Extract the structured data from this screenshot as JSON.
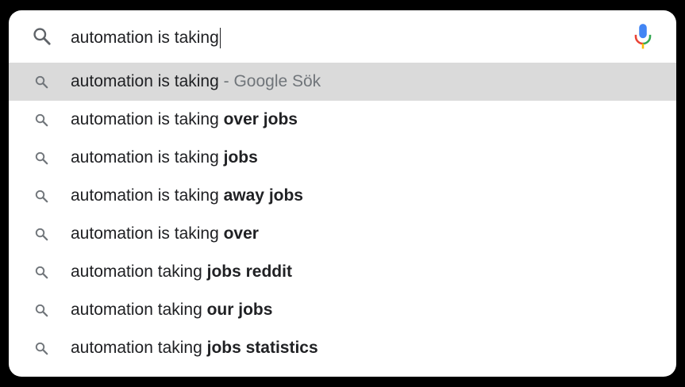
{
  "search": {
    "query": "automation is taking",
    "icon": "search-icon",
    "mic_icon": "microphone-icon"
  },
  "suggestions": [
    {
      "base": "automation is taking",
      "bold": "",
      "suffix": " - Google Sök",
      "highlighted": true
    },
    {
      "base": "automation is taking ",
      "bold": "over jobs",
      "suffix": "",
      "highlighted": false
    },
    {
      "base": "automation is taking ",
      "bold": "jobs",
      "suffix": "",
      "highlighted": false
    },
    {
      "base": "automation is taking ",
      "bold": "away jobs",
      "suffix": "",
      "highlighted": false
    },
    {
      "base": "automation is taking ",
      "bold": "over",
      "suffix": "",
      "highlighted": false
    },
    {
      "base": "automation taking ",
      "bold": "jobs reddit",
      "suffix": "",
      "highlighted": false
    },
    {
      "base": "automation taking ",
      "bold": "our jobs",
      "suffix": "",
      "highlighted": false
    },
    {
      "base": "automation taking ",
      "bold": "jobs statistics",
      "suffix": "",
      "highlighted": false
    }
  ],
  "colors": {
    "background": "#000000",
    "panel": "#ffffff",
    "highlight": "#dadada",
    "text": "#202124",
    "muted": "#70757a",
    "mic_blue": "#4285f4",
    "mic_red": "#ea4335",
    "mic_yellow": "#fbbc04",
    "mic_green": "#34a853"
  }
}
